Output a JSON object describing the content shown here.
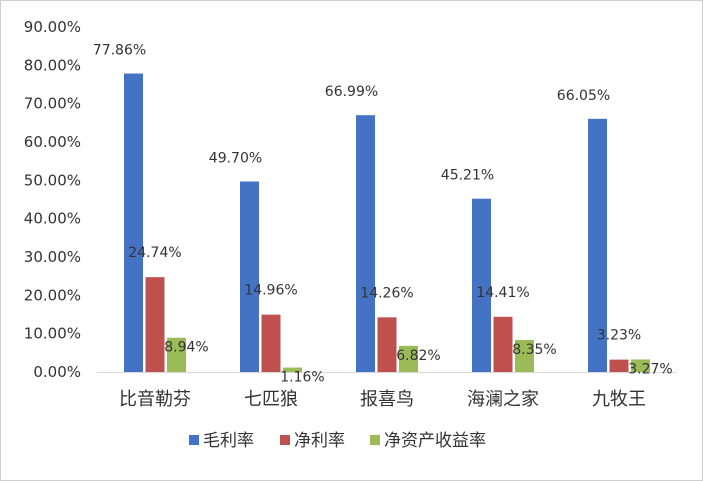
{
  "chart_data": {
    "type": "bar",
    "categories": [
      "比音勒芬",
      "七匹狼",
      "报喜鸟",
      "海澜之家",
      "九牧王"
    ],
    "series": [
      {
        "name": "毛利率",
        "color": "#4472C4",
        "values": [
          77.86,
          49.7,
          66.99,
          45.21,
          66.05
        ],
        "labels": [
          "77.86%",
          "49.70%",
          "66.99%",
          "45.21%",
          "66.05%"
        ]
      },
      {
        "name": "净利率",
        "color": "#C0504D",
        "values": [
          24.74,
          14.96,
          14.26,
          14.41,
          3.23
        ],
        "labels": [
          "24.74%",
          "14.96%",
          "14.26%",
          "14.41%",
          "3.23%"
        ]
      },
      {
        "name": "净资产收益率",
        "color": "#9BBB59",
        "values": [
          8.94,
          1.16,
          6.82,
          8.35,
          3.27
        ],
        "labels": [
          "8.94%",
          "1.16%",
          "6.82%",
          "8.35%",
          "3.27%"
        ]
      }
    ],
    "ylim": [
      0,
      90
    ],
    "yticks": [
      "0.00%",
      "10.00%",
      "20.00%",
      "30.00%",
      "40.00%",
      "50.00%",
      "60.00%",
      "70.00%",
      "80.00%",
      "90.00%"
    ],
    "title": "",
    "xlabel": "",
    "ylabel": "",
    "grid": false,
    "legend": "bottom"
  }
}
